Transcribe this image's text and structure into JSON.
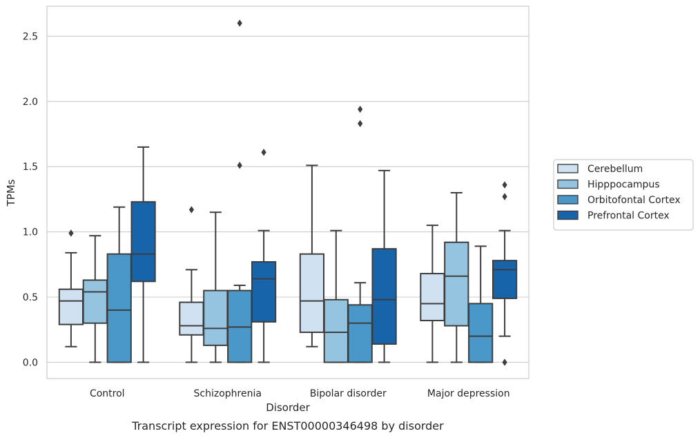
{
  "chart_data": {
    "type": "box",
    "caption": "Transcript expression for ENST00000346498 by disorder",
    "xlabel": "Disorder",
    "ylabel": "TPMs",
    "ylim": [
      -0.125,
      2.73
    ],
    "yticks": [
      "0.0",
      "0.5",
      "1.0",
      "1.5",
      "2.0",
      "2.5"
    ],
    "ytick_values": [
      0,
      0.5,
      1.0,
      1.5,
      2.0,
      2.5
    ],
    "grid": true,
    "legend_position": "right",
    "categories": [
      "Control",
      "Schizophrenia",
      "Bipolar disorder",
      "Major depression"
    ],
    "series": [
      {
        "name": "Cerebellum",
        "color": "#d0e1f2",
        "boxes": [
          {
            "whisker_low": 0.12,
            "q1": 0.29,
            "median": 0.47,
            "q3": 0.56,
            "whisker_high": 0.84,
            "outliers": [
              0.99
            ]
          },
          {
            "whisker_low": 0.0,
            "q1": 0.21,
            "median": 0.28,
            "q3": 0.46,
            "whisker_high": 0.71,
            "outliers": [
              1.17
            ]
          },
          {
            "whisker_low": 0.12,
            "q1": 0.23,
            "median": 0.47,
            "q3": 0.83,
            "whisker_high": 1.51,
            "outliers": []
          },
          {
            "whisker_low": 0.0,
            "q1": 0.32,
            "median": 0.45,
            "q3": 0.68,
            "whisker_high": 1.05,
            "outliers": []
          }
        ]
      },
      {
        "name": "Hipppocampus",
        "color": "#94c4df",
        "boxes": [
          {
            "whisker_low": 0.0,
            "q1": 0.3,
            "median": 0.54,
            "q3": 0.63,
            "whisker_high": 0.97,
            "outliers": []
          },
          {
            "whisker_low": 0.0,
            "q1": 0.13,
            "median": 0.26,
            "q3": 0.55,
            "whisker_high": 1.15,
            "outliers": []
          },
          {
            "whisker_low": 0.0,
            "q1": 0.0,
            "median": 0.23,
            "q3": 0.48,
            "whisker_high": 1.01,
            "outliers": []
          },
          {
            "whisker_low": 0.0,
            "q1": 0.28,
            "median": 0.66,
            "q3": 0.92,
            "whisker_high": 1.3,
            "outliers": []
          }
        ]
      },
      {
        "name": "Orbitofontal Cortex",
        "color": "#4a98c9",
        "boxes": [
          {
            "whisker_low": 0.0,
            "q1": 0.0,
            "median": 0.4,
            "q3": 0.83,
            "whisker_high": 1.19,
            "outliers": []
          },
          {
            "whisker_low": 0.0,
            "q1": 0.0,
            "median": 0.27,
            "q3": 0.55,
            "whisker_high": 0.59,
            "outliers": [
              1.51,
              2.6
            ]
          },
          {
            "whisker_low": 0.0,
            "q1": 0.0,
            "median": 0.3,
            "q3": 0.44,
            "whisker_high": 0.61,
            "outliers": [
              1.83,
              1.94
            ]
          },
          {
            "whisker_low": 0.0,
            "q1": 0.0,
            "median": 0.2,
            "q3": 0.45,
            "whisker_high": 0.89,
            "outliers": []
          }
        ]
      },
      {
        "name": "Prefrontal Cortex",
        "color": "#1764ab",
        "boxes": [
          {
            "whisker_low": 0.0,
            "q1": 0.62,
            "median": 0.83,
            "q3": 1.23,
            "whisker_high": 1.65,
            "outliers": []
          },
          {
            "whisker_low": 0.0,
            "q1": 0.31,
            "median": 0.64,
            "q3": 0.77,
            "whisker_high": 1.01,
            "outliers": [
              1.61
            ]
          },
          {
            "whisker_low": 0.0,
            "q1": 0.14,
            "median": 0.48,
            "q3": 0.87,
            "whisker_high": 1.47,
            "outliers": []
          },
          {
            "whisker_low": 0.2,
            "q1": 0.49,
            "median": 0.71,
            "q3": 0.78,
            "whisker_high": 1.01,
            "outliers": [
              0.0,
              1.27,
              1.36
            ]
          }
        ]
      }
    ]
  }
}
